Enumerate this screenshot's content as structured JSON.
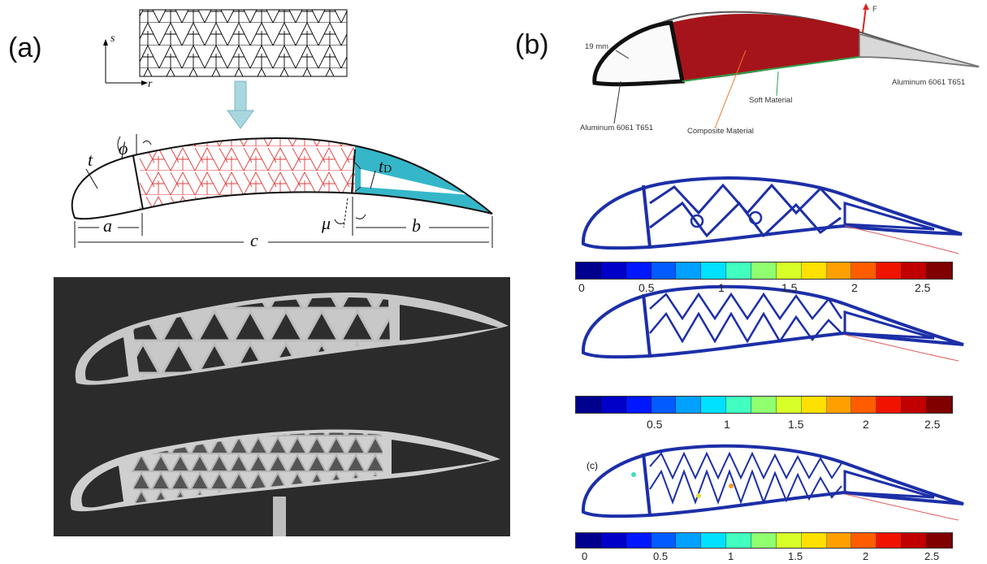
{
  "panels": {
    "a": {
      "label": "(a)",
      "axes": {
        "vertical": "s",
        "horizontal": "r"
      },
      "dims": {
        "thickness": "t",
        "angle_phi": "ϕ",
        "t_D_base": "t",
        "t_D_sub": "D",
        "angle_mu": "μ",
        "a": "a",
        "b": "b",
        "c": "c"
      }
    },
    "b": {
      "label": "(b)",
      "callouts": {
        "thickness": "19 mm",
        "force": "F",
        "aluminum_rear": "Aluminum 6061 T651",
        "soft_material": "Soft Material",
        "aluminum_front": "Aluminum 6061 T651",
        "composite": "Composite Material"
      },
      "sublabel_c": "(c)",
      "colorbar_ticks": [
        "0",
        "0.5",
        "1",
        "1.5",
        "2",
        "2.5"
      ],
      "colorbar_ticks_mid": [
        "0.5",
        "1",
        "1.5",
        "2",
        "2.5"
      ]
    }
  },
  "colors": {
    "lattice_red": "#e23b3b",
    "teal": "#35b7c9",
    "composite_red": "#a5141a",
    "fem_blue": "#1c2fa8",
    "photo_bg": "#2b2b2b"
  },
  "colorbar_colors": [
    "#00008f",
    "#0000c8",
    "#0018ff",
    "#005cff",
    "#00a0ff",
    "#00e0ff",
    "#40ffbf",
    "#90ff70",
    "#d8ff28",
    "#ffe000",
    "#ffa000",
    "#ff5c00",
    "#f01400",
    "#c00000",
    "#800000"
  ]
}
